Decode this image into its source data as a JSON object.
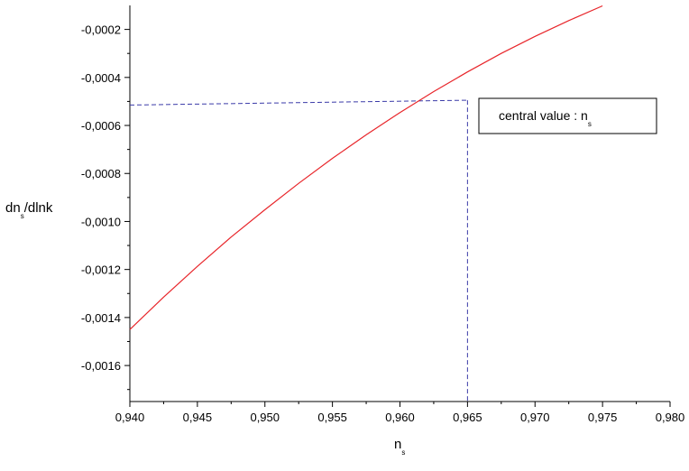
{
  "chart_data": {
    "type": "line",
    "title": "",
    "xlabel": "n",
    "xlabel_sub": "s",
    "ylabel": "dn",
    "ylabel_sub": "s",
    "ylabel_rest": "/dlnk",
    "xlim": [
      0.94,
      0.98
    ],
    "ylim": [
      -0.00175,
      -0.0001
    ],
    "x_ticks": [
      0.94,
      0.945,
      0.95,
      0.955,
      0.96,
      0.965,
      0.97,
      0.975,
      0.98
    ],
    "x_tick_labels": [
      "0,940",
      "0,945",
      "0,950",
      "0,955",
      "0,960",
      "0,965",
      "0,970",
      "0,975",
      "0,980"
    ],
    "y_ticks": [
      -0.0002,
      -0.0004,
      -0.0006,
      -0.0008,
      -0.001,
      -0.0012,
      -0.0014,
      -0.0016
    ],
    "y_tick_labels": [
      "-0,0002",
      "-0,0004",
      "-0,0006",
      "-0,0008",
      "-0,0010",
      "-0,0012",
      "-0,0014",
      "-0,0016"
    ],
    "grid": false,
    "series": [
      {
        "color": "#e8262b",
        "x": [
          0.94,
          0.9425,
          0.945,
          0.9475,
          0.95,
          0.9525,
          0.955,
          0.9575,
          0.96,
          0.9625,
          0.965,
          0.9675,
          0.97,
          0.9725,
          0.975
        ],
        "y": [
          -0.00145,
          -0.001315,
          -0.001187,
          -0.001065,
          -0.000951,
          -0.000841,
          -0.000737,
          -0.000639,
          -0.000546,
          -0.000459,
          -0.000377,
          -0.0003,
          -0.000229,
          -0.000163,
          -0.000102
        ]
      }
    ],
    "reference_lines": {
      "color": "#3a3aa8",
      "style": "dashed",
      "vertical_x": 0.965,
      "horizontal_from": {
        "x": 0.94,
        "y": -0.000515
      },
      "horizontal_to": {
        "x": 0.965,
        "y": -0.000495
      }
    },
    "annotation": {
      "text": "central value : n",
      "sub": "s"
    }
  }
}
